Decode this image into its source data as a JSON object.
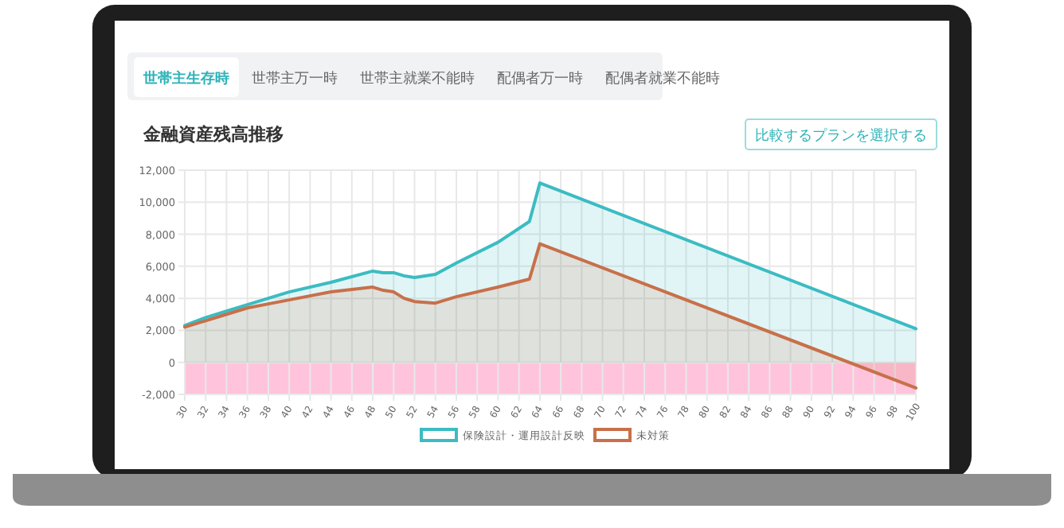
{
  "chart_data": {
    "type": "area",
    "title": "金融資産残高推移",
    "annotations": [
      "世帯主生存時",
      "世帯主万一時",
      "世帯主就業不能時",
      "配偶者万一時",
      "配偶者就業不能時",
      "比較するプランを選択する"
    ],
    "xlim": [
      30,
      100
    ],
    "xticks": [
      30,
      32,
      34,
      36,
      38,
      40,
      42,
      44,
      46,
      48,
      50,
      52,
      54,
      56,
      58,
      60,
      62,
      64,
      66,
      68,
      70,
      72,
      74,
      76,
      78,
      80,
      82,
      84,
      86,
      88,
      90,
      92,
      94,
      96,
      98,
      100
    ],
    "ylim": [
      -2000,
      12000
    ],
    "yticks": [
      {
        "value": -2000,
        "label": "-2,000"
      },
      0,
      {
        "value": 2000,
        "label": "2,000"
      },
      {
        "value": 4000,
        "label": "4,000"
      },
      {
        "value": 6000,
        "label": "6,000"
      },
      {
        "value": 8000,
        "label": "8,000"
      },
      {
        "value": 10000,
        "label": "10,000"
      },
      {
        "value": 12000,
        "label": "12,000"
      }
    ],
    "grid": true,
    "legend": "bottom",
    "bands": [
      {
        "axis": "y",
        "from": -2000,
        "to": 0,
        "color": "#ffc4dc"
      }
    ],
    "series": [
      {
        "name": "保険設計・運用設計反映",
        "color": "#3bbcc2",
        "x": [
          30,
          32,
          34,
          36,
          40,
          44,
          48,
          49,
          50,
          51,
          52,
          53,
          54,
          56,
          60,
          63,
          64,
          100
        ],
        "values": [
          2300,
          2800,
          3200,
          3600,
          4400,
          5000,
          5700,
          5600,
          5600,
          5400,
          5300,
          5400,
          5500,
          6200,
          7500,
          8800,
          11200,
          2100
        ]
      },
      {
        "name": "未対策",
        "color": "#c8704a",
        "x": [
          30,
          32,
          34,
          36,
          40,
          44,
          48,
          49,
          50,
          51,
          52,
          54,
          56,
          60,
          63,
          64,
          100
        ],
        "values": [
          2200,
          2600,
          3000,
          3400,
          3900,
          4400,
          4700,
          4500,
          4400,
          4000,
          3800,
          3700,
          4100,
          4700,
          5200,
          7400,
          -1600
        ]
      }
    ]
  }
}
